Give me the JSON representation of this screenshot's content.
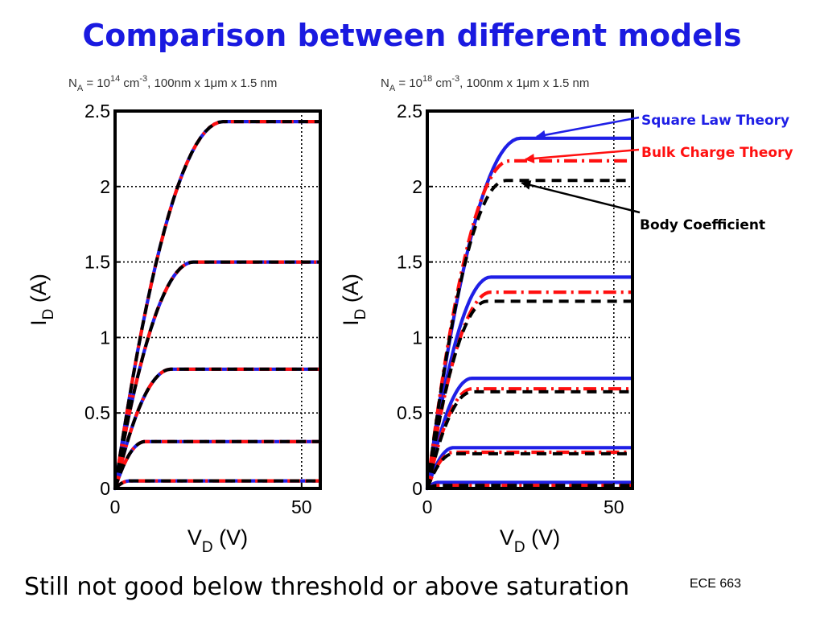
{
  "slide": {
    "title": "Comparison between different models",
    "footer": "Still not good below threshold or above saturation",
    "course": "ECE 663"
  },
  "colors": {
    "square_law": "#1f1fe6",
    "bulk_charge": "#ff1010",
    "body_coefficient": "#000000",
    "title": "#1a1ae0"
  },
  "annotations": [
    {
      "text": "Square Law Theory",
      "color": "#1f1fe6",
      "points_to": "square_law"
    },
    {
      "text": "Bulk Charge Theory",
      "color": "#ff1010",
      "points_to": "bulk_charge"
    },
    {
      "text": "Body Coefficient",
      "color": "#000000",
      "points_to": "body_coefficient"
    }
  ],
  "chart_data": [
    {
      "type": "line",
      "subtitle": {
        "pre": "N",
        "sub": "A",
        "mid": " = 10",
        "sup": "14",
        "mid2": " cm",
        "sup2": "-3",
        "post": ", 100nm x 1μm x 1.5 nm"
      },
      "xlabel": {
        "main": "V",
        "sub": "D",
        "rest": " (V)"
      },
      "ylabel": {
        "main": "I",
        "sub": "D",
        "rest": " (A)"
      },
      "xlim": [
        0,
        55
      ],
      "ylim": [
        0,
        2.5
      ],
      "xticks": [
        0,
        50
      ],
      "xtick_labels": [
        "0",
        "50"
      ],
      "yticks": [
        0,
        0.5,
        1,
        1.5,
        2,
        2.5
      ],
      "ytick_labels": [
        "0",
        "0.5",
        "1",
        "1.5",
        "2",
        "2.5"
      ],
      "grid": "dotted",
      "series": [
        {
          "model": "square_law",
          "style": "solid",
          "curves": [
            {
              "isat": 0.05,
              "vsat": 4
            },
            {
              "isat": 0.31,
              "vsat": 8
            },
            {
              "isat": 0.79,
              "vsat": 15
            },
            {
              "isat": 1.5,
              "vsat": 21
            },
            {
              "isat": 2.43,
              "vsat": 29
            }
          ]
        },
        {
          "model": "bulk_charge",
          "style": "dashdot",
          "curves": [
            {
              "isat": 0.05,
              "vsat": 4
            },
            {
              "isat": 0.31,
              "vsat": 8
            },
            {
              "isat": 0.79,
              "vsat": 15
            },
            {
              "isat": 1.5,
              "vsat": 21
            },
            {
              "isat": 2.43,
              "vsat": 29
            }
          ]
        },
        {
          "model": "body_coefficient",
          "style": "dashed",
          "curves": [
            {
              "isat": 0.05,
              "vsat": 4
            },
            {
              "isat": 0.31,
              "vsat": 8
            },
            {
              "isat": 0.79,
              "vsat": 15
            },
            {
              "isat": 1.5,
              "vsat": 21
            },
            {
              "isat": 2.43,
              "vsat": 29
            }
          ]
        }
      ]
    },
    {
      "type": "line",
      "subtitle": {
        "pre": "N",
        "sub": "A",
        "mid": " = 10",
        "sup": "18",
        "mid2": " cm",
        "sup2": "-3",
        "post": ", 100nm x 1μm x 1.5 nm"
      },
      "xlabel": {
        "main": "V",
        "sub": "D",
        "rest": " (V)"
      },
      "ylabel": {
        "main": "I",
        "sub": "D",
        "rest": " (A)"
      },
      "xlim": [
        0,
        55
      ],
      "ylim": [
        0,
        2.5
      ],
      "xticks": [
        0,
        50
      ],
      "xtick_labels": [
        "0",
        "50"
      ],
      "yticks": [
        0,
        0.5,
        1,
        1.5,
        2,
        2.5
      ],
      "ytick_labels": [
        "0",
        "0.5",
        "1",
        "1.5",
        "2",
        "2.5"
      ],
      "grid": "dotted",
      "series": [
        {
          "model": "square_law",
          "style": "solid",
          "curves": [
            {
              "isat": 0.04,
              "vsat": 3
            },
            {
              "isat": 0.27,
              "vsat": 7
            },
            {
              "isat": 0.73,
              "vsat": 12
            },
            {
              "isat": 1.4,
              "vsat": 17
            },
            {
              "isat": 2.32,
              "vsat": 25
            }
          ]
        },
        {
          "model": "bulk_charge",
          "style": "dashdot",
          "curves": [
            {
              "isat": 0.02,
              "vsat": 3
            },
            {
              "isat": 0.24,
              "vsat": 7
            },
            {
              "isat": 0.66,
              "vsat": 12
            },
            {
              "isat": 1.3,
              "vsat": 17
            },
            {
              "isat": 2.17,
              "vsat": 22
            }
          ]
        },
        {
          "model": "body_coefficient",
          "style": "dashed",
          "curves": [
            {
              "isat": 0.02,
              "vsat": 3
            },
            {
              "isat": 0.23,
              "vsat": 7
            },
            {
              "isat": 0.64,
              "vsat": 12
            },
            {
              "isat": 1.24,
              "vsat": 16
            },
            {
              "isat": 2.04,
              "vsat": 21
            }
          ]
        }
      ]
    }
  ]
}
